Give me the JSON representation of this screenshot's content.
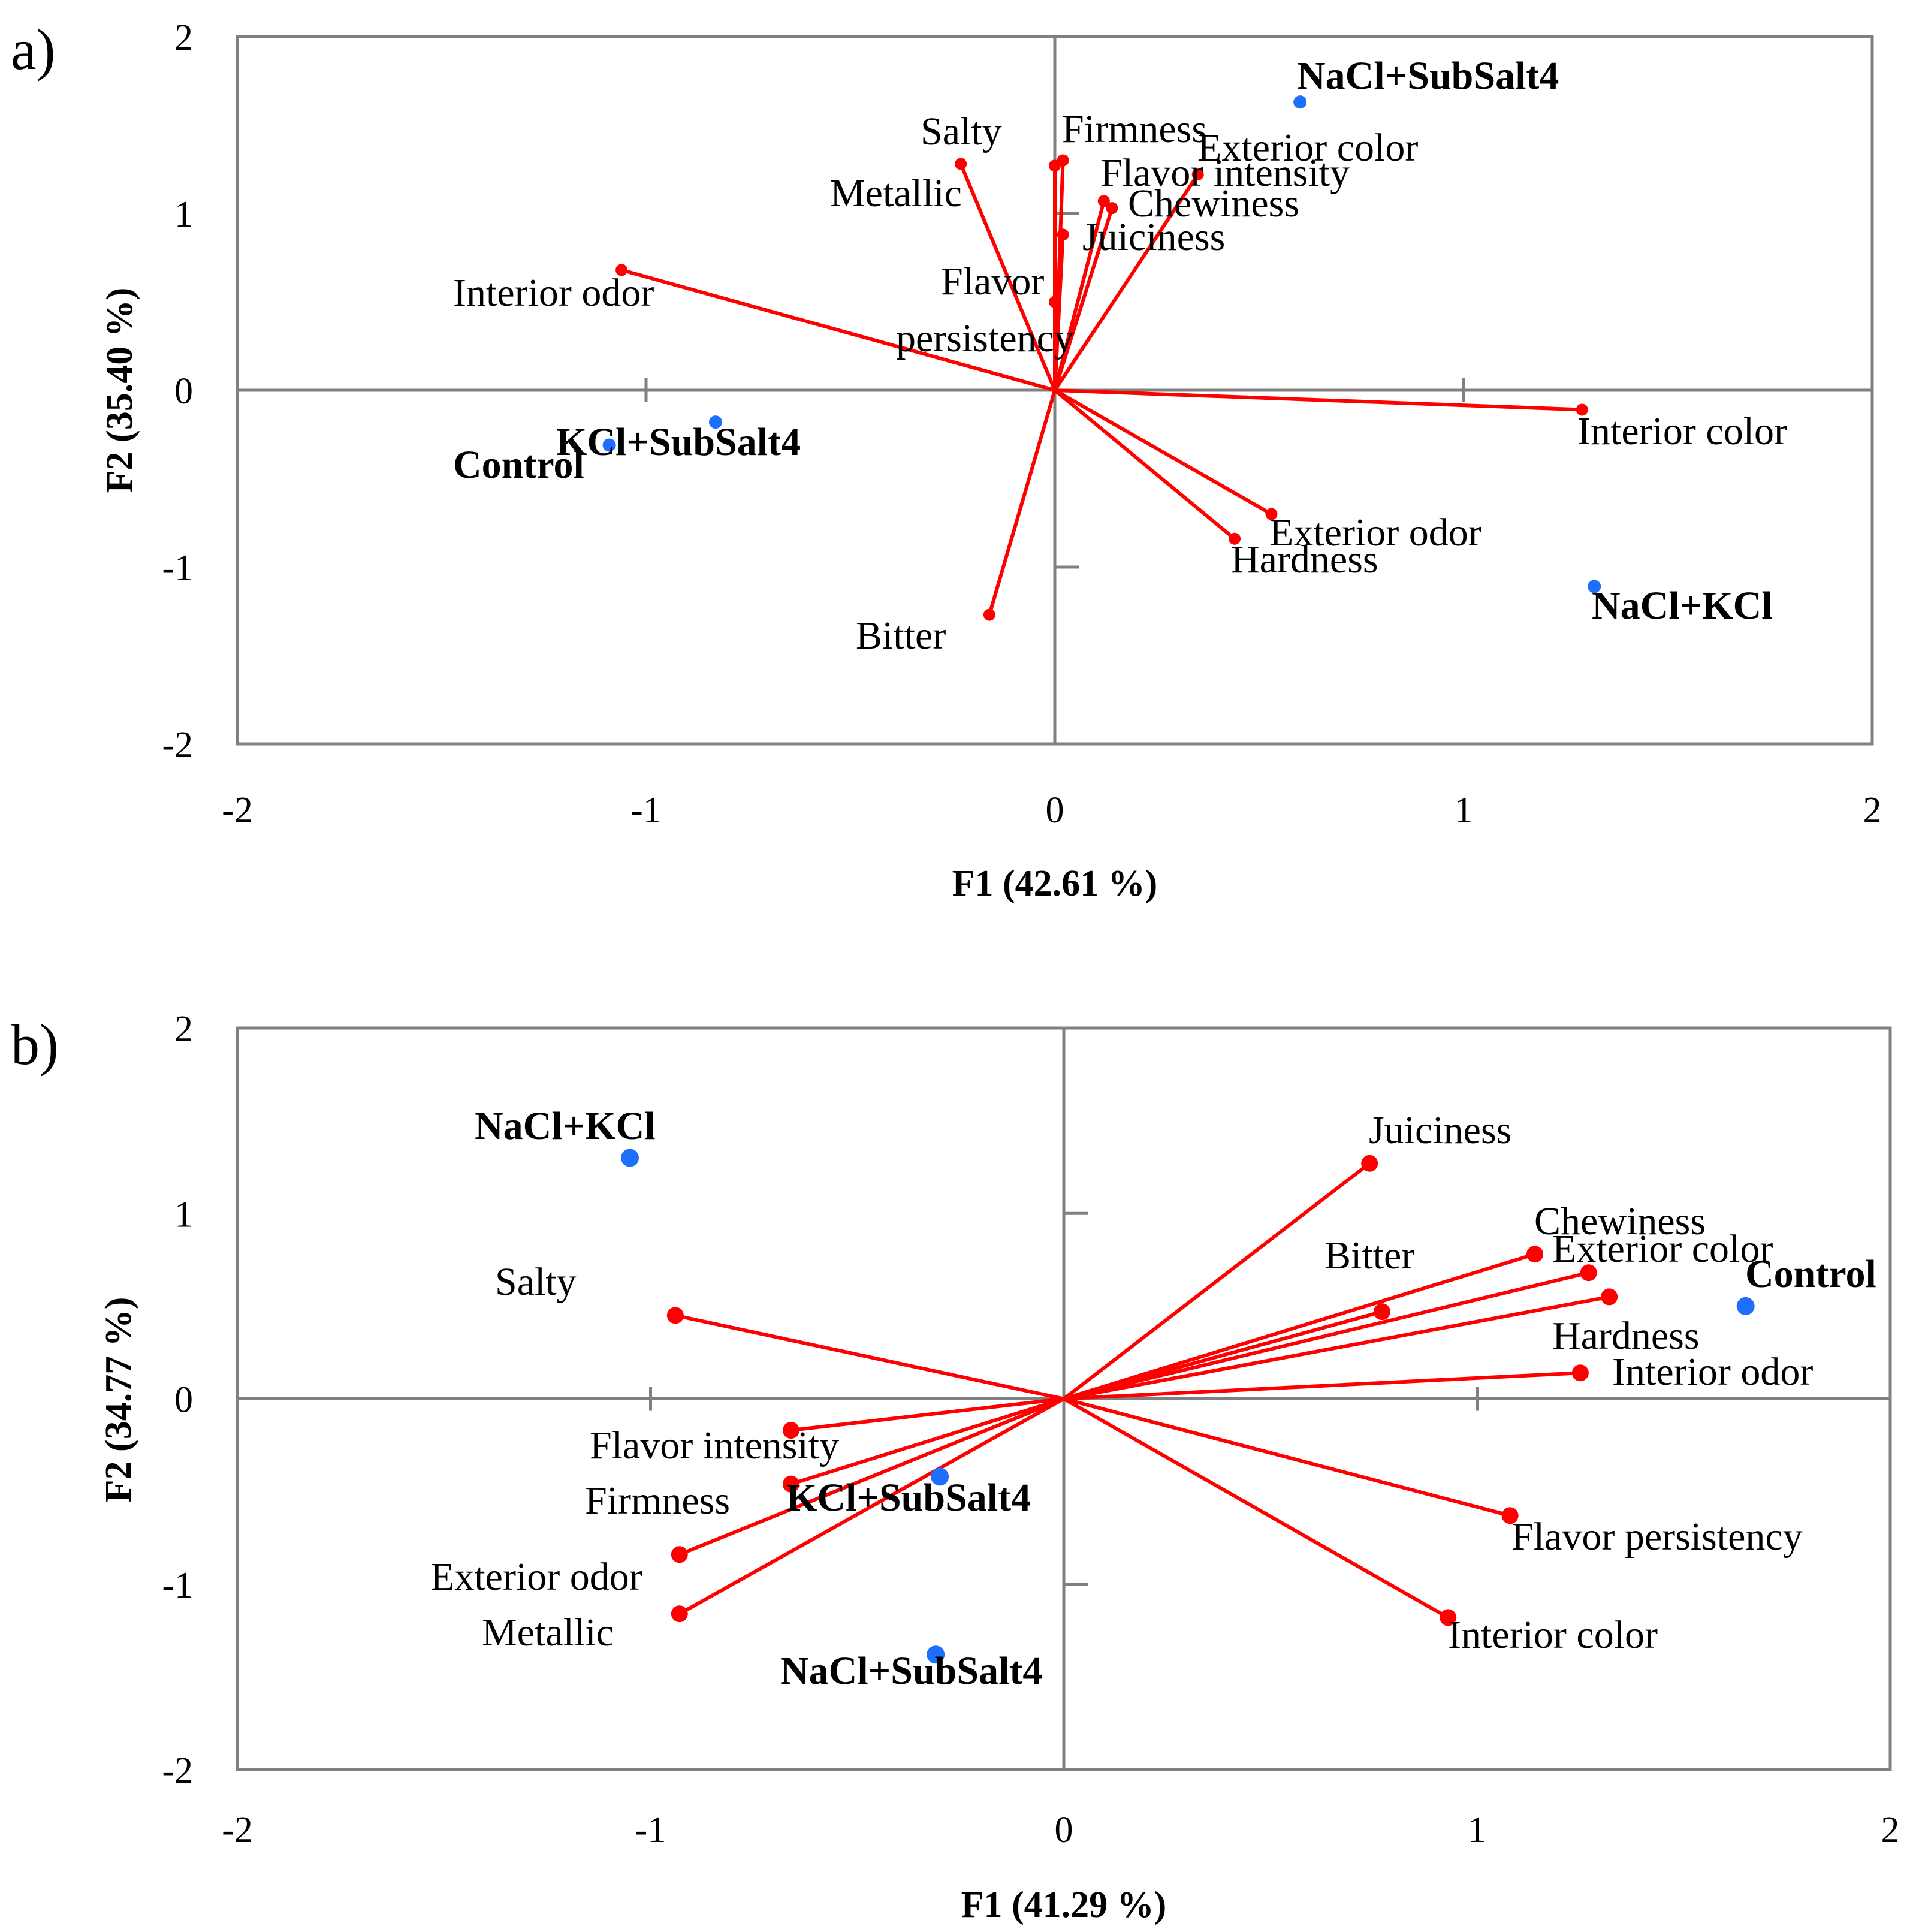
{
  "colors": {
    "loading": "#ff0000",
    "sample": "#1f6fff",
    "axis": "#808080",
    "text": "#000000"
  },
  "chart_data": [
    {
      "panel": "a)",
      "type": "scatter",
      "subtype": "biplot",
      "xlabel": "F1 (42.61 %)",
      "ylabel": "F2 (35.40 %)",
      "xlim": [
        -2,
        2
      ],
      "ylim": [
        -2,
        2
      ],
      "xticks": [
        "-2",
        "-1",
        "0",
        "1",
        "2"
      ],
      "yticks": [
        "2",
        "1",
        "0",
        "-1",
        "-2"
      ],
      "grid": false,
      "loadings": [
        {
          "label": "Salty",
          "x": -0.23,
          "y": 1.28
        },
        {
          "label": "Firmness",
          "x": 0.02,
          "y": 1.3
        },
        {
          "label": "Exterior color",
          "x": 0.35,
          "y": 1.22
        },
        {
          "label": "Flavor intensity",
          "x": 0.12,
          "y": 1.07
        },
        {
          "label": "Chewiness",
          "x": 0.14,
          "y": 1.03
        },
        {
          "label": "Metallic",
          "x": 0.0,
          "y": 1.27
        },
        {
          "label": "Juiciness",
          "x": 0.02,
          "y": 0.88
        },
        {
          "label": "Flavor persistency",
          "x": 0.0,
          "y": 0.5
        },
        {
          "label": "Interior odor",
          "x": -1.06,
          "y": 0.68
        },
        {
          "label": "Interior color",
          "x": 1.29,
          "y": -0.11
        },
        {
          "label": "Exterior odor",
          "x": 0.53,
          "y": -0.7
        },
        {
          "label": "Hardness",
          "x": 0.44,
          "y": -0.84
        },
        {
          "label": "Bitter",
          "x": -0.16,
          "y": -1.27
        }
      ],
      "samples": [
        {
          "label": "NaCl+SubSalt4",
          "x": 0.6,
          "y": 1.63
        },
        {
          "label": "KCl+SubSalt4",
          "x": -0.83,
          "y": -0.18
        },
        {
          "label": "Control",
          "x": -1.09,
          "y": -0.31
        },
        {
          "label": "NaCl+KCl",
          "x": 1.32,
          "y": -1.11
        }
      ]
    },
    {
      "panel": "b)",
      "type": "scatter",
      "subtype": "biplot",
      "xlabel": "F1 (41.29 %)",
      "ylabel": "F2 (34.77 %)",
      "xlim": [
        -2,
        2
      ],
      "ylim": [
        -2,
        2
      ],
      "xticks": [
        "-2",
        "-1",
        "0",
        "1",
        "2"
      ],
      "yticks": [
        "2",
        "1",
        "0",
        "-1",
        "-2"
      ],
      "grid": false,
      "loadings": [
        {
          "label": "Juiciness",
          "x": 0.74,
          "y": 1.27
        },
        {
          "label": "Chewiness",
          "x": 1.14,
          "y": 0.78
        },
        {
          "label": "Exterior color",
          "x": 1.27,
          "y": 0.68
        },
        {
          "label": "Bitter",
          "x": 0.77,
          "y": 0.47
        },
        {
          "label": "Hardness",
          "x": 1.32,
          "y": 0.55
        },
        {
          "label": "Interior odor",
          "x": 1.25,
          "y": 0.14
        },
        {
          "label": "Flavor persistency",
          "x": 1.08,
          "y": -0.63
        },
        {
          "label": "Interior color",
          "x": 0.93,
          "y": -1.18
        },
        {
          "label": "Salty",
          "x": -0.94,
          "y": 0.45
        },
        {
          "label": "Flavor intensity",
          "x": -0.66,
          "y": -0.17
        },
        {
          "label": "Firmness",
          "x": -0.66,
          "y": -0.46
        },
        {
          "label": "Exterior odor",
          "x": -0.93,
          "y": -0.84
        },
        {
          "label": "Metallic",
          "x": -0.93,
          "y": -1.16
        }
      ],
      "samples": [
        {
          "label": "NaCl+KCl",
          "x": -1.05,
          "y": 1.3
        },
        {
          "label": "Control",
          "x": 1.65,
          "y": 0.5
        },
        {
          "label": "KCl+SubSalt4",
          "x": -0.3,
          "y": -0.42
        },
        {
          "label": "NaCl+SubSalt4",
          "x": -0.31,
          "y": -1.38
        }
      ]
    }
  ]
}
